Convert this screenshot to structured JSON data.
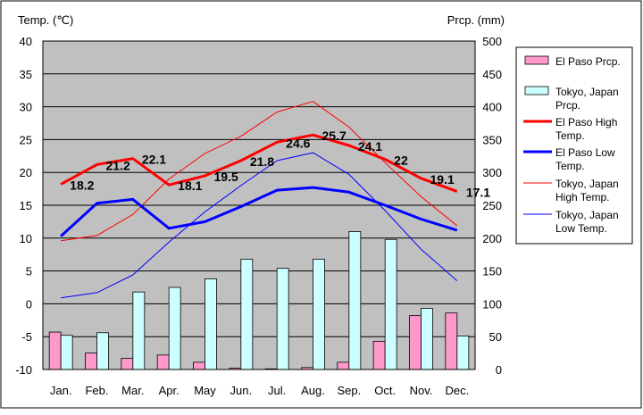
{
  "chart_data": {
    "type": "bar+line",
    "left_axis_label": "Temp. (℃)",
    "right_axis_label": "Prcp. (mm)",
    "categories": [
      "Jan.",
      "Feb.",
      "Mar.",
      "Apr.",
      "May",
      "Jun.",
      "Jul.",
      "Aug.",
      "Sep.",
      "Oct.",
      "Nov.",
      "Dec."
    ],
    "y_left": {
      "min": -10,
      "max": 40,
      "ticks": [
        "40",
        "35",
        "30",
        "25",
        "20",
        "15",
        "10",
        "5",
        "0",
        "-5",
        "-10"
      ]
    },
    "y_right": {
      "min": 0,
      "max": 500,
      "ticks": [
        "500",
        "450",
        "400",
        "350",
        "300",
        "250",
        "200",
        "150",
        "100",
        "50",
        "0"
      ]
    },
    "bar_series": [
      {
        "name": "El Paso Prcp.",
        "color": "#ff99cc",
        "values": [
          57,
          25,
          17,
          22,
          11,
          2,
          1,
          3,
          11,
          43,
          82,
          86
        ]
      },
      {
        "name": "Tokyo, Japan Prcp.",
        "color": "#ccffff",
        "values": [
          52,
          56,
          118,
          125,
          138,
          168,
          154,
          168,
          210,
          198,
          93,
          51
        ]
      }
    ],
    "line_series": [
      {
        "name": "El Paso High Temp.",
        "color": "#ff0000",
        "width": 3,
        "values": [
          18.2,
          21.2,
          22.1,
          18.1,
          19.5,
          21.8,
          24.6,
          25.7,
          24.1,
          22,
          19.1,
          17.1
        ],
        "labels": [
          "18.2",
          "21.2",
          "22.1",
          "18.1",
          "19.5",
          "21.8",
          "24.6",
          "25.7",
          "24.1",
          "22",
          "19.1",
          "17.1"
        ]
      },
      {
        "name": "El Paso Low Temp.",
        "color": "#0000ff",
        "width": 3,
        "values": [
          10.3,
          15.3,
          15.9,
          11.5,
          12.5,
          14.8,
          17.3,
          17.7,
          17.0,
          15.0,
          12.9,
          11.2
        ]
      },
      {
        "name": "Tokyo, Japan High Temp.",
        "color": "#ff0000",
        "width": 1,
        "values": [
          9.6,
          10.4,
          13.6,
          19.0,
          22.9,
          25.5,
          29.2,
          30.8,
          26.9,
          21.5,
          16.3,
          11.9
        ]
      },
      {
        "name": "Tokyo, Japan Low Temp.",
        "color": "#0000ff",
        "width": 1,
        "values": [
          0.9,
          1.7,
          4.4,
          9.4,
          14.0,
          18.0,
          21.8,
          23.0,
          19.7,
          14.2,
          8.3,
          3.5
        ]
      }
    ],
    "legend": {
      "placement": "right",
      "entries": [
        {
          "lines": [
            "El Paso Prcp."
          ],
          "kind": "bar",
          "color": "#ff99cc"
        },
        {
          "lines": [
            "Tokyo, Japan",
            "Prcp."
          ],
          "kind": "bar",
          "color": "#ccffff"
        },
        {
          "lines": [
            "El Paso High",
            "Temp."
          ],
          "kind": "line",
          "color": "#ff0000",
          "width": 3
        },
        {
          "lines": [
            "El Paso Low",
            "Temp."
          ],
          "kind": "line",
          "color": "#0000ff",
          "width": 3
        },
        {
          "lines": [
            "Tokyo, Japan",
            "High Temp."
          ],
          "kind": "line",
          "color": "#ff0000",
          "width": 1
        },
        {
          "lines": [
            "Tokyo, Japan",
            "Low Temp."
          ],
          "kind": "line",
          "color": "#0000ff",
          "width": 1
        }
      ]
    },
    "plot_background": "#c0c0c0",
    "grid": true
  }
}
